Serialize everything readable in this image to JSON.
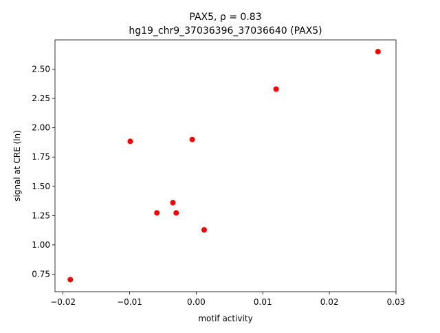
{
  "chart_data": {
    "type": "scatter",
    "title": "PAX5, ρ = 0.83",
    "subtitle": "hg19_chr9_37036396_37036640 (PAX5)",
    "x_label": "motif activity",
    "y_label": "signal at CRE (ln)",
    "color": "#ff0000",
    "x": [
      -0.0189,
      -0.0099,
      -0.0059,
      -0.0035,
      -0.003,
      -0.0006,
      0.0012,
      0.012,
      0.0273
    ],
    "values": [
      0.703,
      1.884,
      1.273,
      1.36,
      1.273,
      1.9,
      1.128,
      2.33,
      2.65
    ],
    "xlim": [
      -0.0212,
      0.03
    ],
    "ylim": [
      0.6,
      2.75
    ],
    "xticks": [
      {
        "value": -0.02,
        "label": "−0.02"
      },
      {
        "value": -0.01,
        "label": "−0.01"
      },
      {
        "value": 0,
        "label": "0.00"
      },
      0.01,
      0.02,
      0.03
    ],
    "yticks": [
      0.75,
      {
        "value": 1,
        "label": "1.00"
      },
      1.25,
      {
        "value": 1.5,
        "label": "1.50"
      },
      1.75,
      {
        "value": 2,
        "label": "2.00"
      },
      2.25,
      {
        "value": 2.5,
        "label": "2.50"
      }
    ]
  }
}
